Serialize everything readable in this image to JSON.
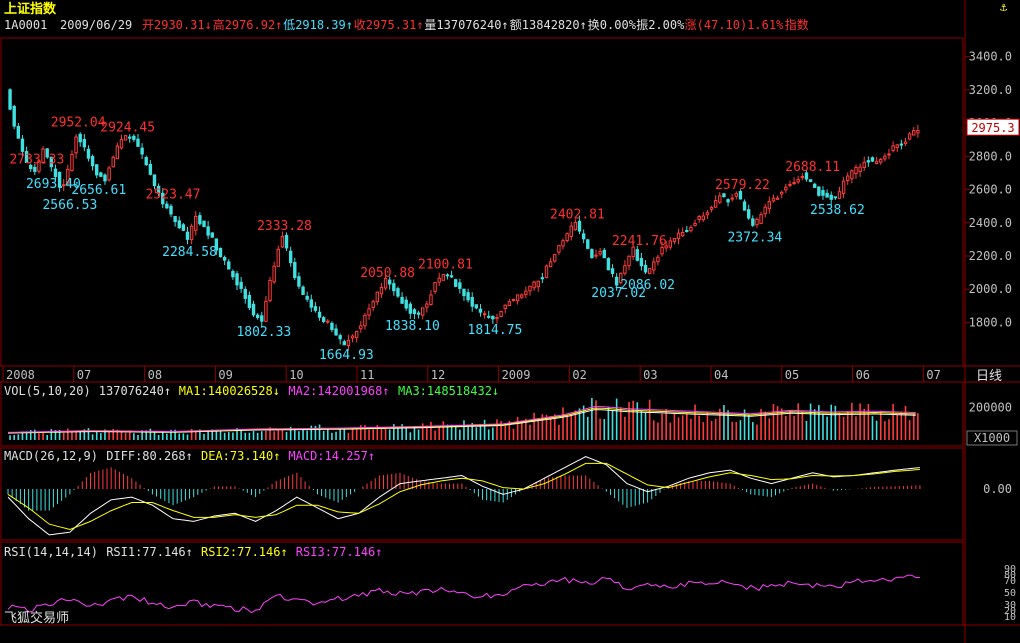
{
  "header": {
    "title": "上证指数",
    "code": "1A0001",
    "date": "2009/06/29",
    "fields": [
      {
        "text": "开2930.31↓",
        "color": "#ff3030"
      },
      {
        "text": "高2976.92↑",
        "color": "#ff3030"
      },
      {
        "text": "低2918.39↑",
        "color": "#40e0ff"
      },
      {
        "text": "收2975.31↑",
        "color": "#ff3030"
      },
      {
        "text": "量137076240↑",
        "color": "#e0e0e0"
      },
      {
        "text": "额13842820↑",
        "color": "#e0e0e0"
      },
      {
        "text": "换0.00%",
        "color": "#e0e0e0"
      },
      {
        "text": "振2.00%",
        "color": "#e0e0e0"
      },
      {
        "text": "涨(47.10)1.61%",
        "color": "#ff3030"
      },
      {
        "text": "指数",
        "color": "#ff3030"
      }
    ],
    "corner_icon": "anchor-icon"
  },
  "colors": {
    "up": "#ff3c3c",
    "down": "#40e0e0",
    "grid": "#8b0000",
    "axis_text": "#c0c0c0",
    "ma1": "#ffffff",
    "ma2": "#ffff00",
    "ma3": "#ff40ff",
    "diff": "#ffffff",
    "dea": "#ffff00",
    "rsi": "#ff40ff",
    "high_label": "#ff3030",
    "low_label": "#40e0ff"
  },
  "chart_data": {
    "type": "candlestick",
    "title": "上证指数",
    "period": "日线",
    "price_axis": {
      "ticks": [
        1800,
        2000,
        2200,
        2400,
        2600,
        2800,
        3000,
        3200,
        3400
      ],
      "range": [
        1550,
        3500
      ]
    },
    "last_price": "2975.3",
    "time_labels": [
      "2008",
      "07",
      "08",
      "09",
      "10",
      "11",
      "12",
      "2009",
      "02",
      "03",
      "04",
      "05",
      "06",
      "07"
    ],
    "price_path": [
      [
        0,
        3210
      ],
      [
        5,
        2930
      ],
      [
        10,
        2760
      ],
      [
        14,
        2700
      ],
      [
        18,
        2830
      ],
      [
        21,
        2760
      ],
      [
        24,
        2690
      ],
      [
        27,
        2580
      ],
      [
        30,
        2720
      ],
      [
        34,
        2930
      ],
      [
        37,
        2880
      ],
      [
        40,
        2790
      ],
      [
        44,
        2700
      ],
      [
        48,
        2660
      ],
      [
        52,
        2790
      ],
      [
        55,
        2900
      ],
      [
        60,
        2920
      ],
      [
        64,
        2860
      ],
      [
        68,
        2750
      ],
      [
        72,
        2620
      ],
      [
        76,
        2520
      ],
      [
        80,
        2450
      ],
      [
        84,
        2380
      ],
      [
        88,
        2300
      ],
      [
        92,
        2430
      ],
      [
        96,
        2380
      ],
      [
        100,
        2300
      ],
      [
        104,
        2200
      ],
      [
        108,
        2120
      ],
      [
        112,
        2040
      ],
      [
        116,
        1950
      ],
      [
        120,
        1850
      ],
      [
        124,
        1800
      ],
      [
        128,
        2050
      ],
      [
        131,
        2200
      ],
      [
        134,
        2330
      ],
      [
        137,
        2200
      ],
      [
        140,
        2080
      ],
      [
        144,
        1970
      ],
      [
        148,
        1900
      ],
      [
        152,
        1830
      ],
      [
        156,
        1800
      ],
      [
        160,
        1720
      ],
      [
        164,
        1670
      ],
      [
        168,
        1720
      ],
      [
        172,
        1790
      ],
      [
        176,
        1880
      ],
      [
        180,
        1980
      ],
      [
        184,
        2050
      ],
      [
        188,
        2000
      ],
      [
        192,
        1930
      ],
      [
        196,
        1870
      ],
      [
        200,
        1840
      ],
      [
        204,
        1920
      ],
      [
        208,
        2030
      ],
      [
        212,
        2100
      ],
      [
        216,
        2060
      ],
      [
        220,
        1990
      ],
      [
        224,
        1940
      ],
      [
        228,
        1880
      ],
      [
        232,
        1840
      ],
      [
        236,
        1815
      ],
      [
        240,
        1870
      ],
      [
        244,
        1920
      ],
      [
        248,
        1960
      ],
      [
        252,
        1990
      ],
      [
        256,
        2030
      ],
      [
        260,
        2080
      ],
      [
        264,
        2180
      ],
      [
        268,
        2260
      ],
      [
        272,
        2330
      ],
      [
        276,
        2400
      ],
      [
        279,
        2320
      ],
      [
        282,
        2240
      ],
      [
        285,
        2180
      ],
      [
        288,
        2240
      ],
      [
        292,
        2120
      ],
      [
        296,
        2040
      ],
      [
        300,
        2140
      ],
      [
        304,
        2240
      ],
      [
        307,
        2150
      ],
      [
        310,
        2090
      ],
      [
        314,
        2160
      ],
      [
        318,
        2240
      ],
      [
        322,
        2290
      ],
      [
        326,
        2330
      ],
      [
        330,
        2360
      ],
      [
        334,
        2410
      ],
      [
        338,
        2450
      ],
      [
        342,
        2500
      ],
      [
        346,
        2560
      ],
      [
        350,
        2540
      ],
      [
        354,
        2580
      ],
      [
        358,
        2480
      ],
      [
        362,
        2380
      ],
      [
        366,
        2440
      ],
      [
        370,
        2520
      ],
      [
        374,
        2560
      ],
      [
        378,
        2620
      ],
      [
        382,
        2650
      ],
      [
        386,
        2690
      ],
      [
        390,
        2640
      ],
      [
        394,
        2580
      ],
      [
        398,
        2560
      ],
      [
        402,
        2540
      ],
      [
        406,
        2640
      ],
      [
        410,
        2700
      ],
      [
        414,
        2740
      ],
      [
        418,
        2780
      ],
      [
        422,
        2760
      ],
      [
        426,
        2800
      ],
      [
        430,
        2850
      ],
      [
        434,
        2880
      ],
      [
        438,
        2920
      ],
      [
        443,
        2975
      ]
    ],
    "annotations_high": [
      {
        "text": "2952.04",
        "x": 34,
        "y": 2955
      },
      {
        "text": "2924.45",
        "x": 58,
        "y": 2925
      },
      {
        "text": "2733.33",
        "x": 14,
        "y": 2733
      },
      {
        "text": "2523.47",
        "x": 80,
        "y": 2523
      },
      {
        "text": "2333.28",
        "x": 134,
        "y": 2333
      },
      {
        "text": "2050.88",
        "x": 184,
        "y": 2050
      },
      {
        "text": "2100.81",
        "x": 212,
        "y": 2100
      },
      {
        "text": "2402.81",
        "x": 276,
        "y": 2402
      },
      {
        "text": "2241.76",
        "x": 306,
        "y": 2241
      },
      {
        "text": "2579.22",
        "x": 356,
        "y": 2579
      },
      {
        "text": "2688.11",
        "x": 390,
        "y": 2688
      }
    ],
    "annotations_low": [
      {
        "text": "2693.40",
        "x": 22,
        "y": 2693
      },
      {
        "text": "2566.53",
        "x": 30,
        "y": 2566
      },
      {
        "text": "2656.61",
        "x": 44,
        "y": 2656
      },
      {
        "text": "2284.58",
        "x": 88,
        "y": 2284
      },
      {
        "text": "1802.33",
        "x": 124,
        "y": 1802
      },
      {
        "text": "1664.93",
        "x": 164,
        "y": 1664
      },
      {
        "text": "1838.10",
        "x": 196,
        "y": 1838
      },
      {
        "text": "1814.75",
        "x": 236,
        "y": 1814
      },
      {
        "text": "2037.02",
        "x": 296,
        "y": 2037
      },
      {
        "text": "2086.02",
        "x": 310,
        "y": 2086
      },
      {
        "text": "2372.34",
        "x": 362,
        "y": 2372
      },
      {
        "text": "2538.62",
        "x": 402,
        "y": 2538
      }
    ],
    "volume": {
      "label": "VOL(5,10,20)",
      "value": "137076240↑",
      "ma1": "MA1:140026528↓",
      "ma2": "MA2:142001968↑",
      "ma3": "MA3:148518432↓",
      "tick": "200000",
      "unit": "X1000",
      "level_path": [
        [
          0,
          45
        ],
        [
          40,
          55
        ],
        [
          80,
          50
        ],
        [
          120,
          65
        ],
        [
          160,
          70
        ],
        [
          200,
          80
        ],
        [
          240,
          95
        ],
        [
          270,
          150
        ],
        [
          285,
          200
        ],
        [
          300,
          185
        ],
        [
          330,
          170
        ],
        [
          360,
          155
        ],
        [
          380,
          175
        ],
        [
          400,
          165
        ],
        [
          420,
          170
        ],
        [
          443,
          160
        ]
      ]
    },
    "macd": {
      "label": "MACD(26,12,9)",
      "diff": "DIFF:80.268↑",
      "dea": "DEA:73.140↑",
      "macd": "MACD:14.257↑",
      "tick": "0.00",
      "diff_path": [
        [
          0,
          -30
        ],
        [
          10,
          -110
        ],
        [
          20,
          -170
        ],
        [
          30,
          -160
        ],
        [
          40,
          -90
        ],
        [
          50,
          -40
        ],
        [
          60,
          -30
        ],
        [
          70,
          -60
        ],
        [
          80,
          -110
        ],
        [
          90,
          -120
        ],
        [
          100,
          -100
        ],
        [
          110,
          -90
        ],
        [
          120,
          -120
        ],
        [
          130,
          -80
        ],
        [
          140,
          -30
        ],
        [
          150,
          -70
        ],
        [
          160,
          -110
        ],
        [
          170,
          -90
        ],
        [
          180,
          -30
        ],
        [
          190,
          20
        ],
        [
          200,
          30
        ],
        [
          210,
          40
        ],
        [
          220,
          50
        ],
        [
          230,
          10
        ],
        [
          240,
          -20
        ],
        [
          250,
          0
        ],
        [
          260,
          40
        ],
        [
          270,
          80
        ],
        [
          280,
          120
        ],
        [
          290,
          90
        ],
        [
          300,
          20
        ],
        [
          310,
          -10
        ],
        [
          320,
          10
        ],
        [
          330,
          40
        ],
        [
          340,
          60
        ],
        [
          350,
          70
        ],
        [
          360,
          40
        ],
        [
          370,
          20
        ],
        [
          380,
          40
        ],
        [
          390,
          60
        ],
        [
          400,
          45
        ],
        [
          410,
          50
        ],
        [
          420,
          60
        ],
        [
          430,
          70
        ],
        [
          443,
          80
        ]
      ],
      "dea_path": [
        [
          0,
          -20
        ],
        [
          10,
          -70
        ],
        [
          20,
          -130
        ],
        [
          30,
          -150
        ],
        [
          40,
          -120
        ],
        [
          50,
          -80
        ],
        [
          60,
          -50
        ],
        [
          70,
          -50
        ],
        [
          80,
          -80
        ],
        [
          90,
          -105
        ],
        [
          100,
          -105
        ],
        [
          110,
          -95
        ],
        [
          120,
          -105
        ],
        [
          130,
          -95
        ],
        [
          140,
          -60
        ],
        [
          150,
          -60
        ],
        [
          160,
          -85
        ],
        [
          170,
          -90
        ],
        [
          180,
          -55
        ],
        [
          190,
          -10
        ],
        [
          200,
          15
        ],
        [
          210,
          30
        ],
        [
          220,
          40
        ],
        [
          230,
          30
        ],
        [
          240,
          5
        ],
        [
          250,
          0
        ],
        [
          260,
          20
        ],
        [
          270,
          55
        ],
        [
          280,
          95
        ],
        [
          290,
          95
        ],
        [
          300,
          55
        ],
        [
          310,
          15
        ],
        [
          320,
          5
        ],
        [
          330,
          25
        ],
        [
          340,
          45
        ],
        [
          350,
          60
        ],
        [
          360,
          50
        ],
        [
          370,
          35
        ],
        [
          380,
          38
        ],
        [
          390,
          50
        ],
        [
          400,
          48
        ],
        [
          410,
          50
        ],
        [
          420,
          56
        ],
        [
          430,
          65
        ],
        [
          443,
          73
        ]
      ]
    },
    "rsi": {
      "label": "RSI(14,14,14)",
      "rsi1": "RSI1:77.146↑",
      "rsi2": "RSI2:77.146↑",
      "rsi3": "RSI3:77.146↑",
      "ticks": [
        10,
        20,
        30,
        50,
        70,
        80,
        90
      ],
      "path": [
        [
          0,
          25
        ],
        [
          10,
          20
        ],
        [
          20,
          30
        ],
        [
          30,
          40
        ],
        [
          40,
          28
        ],
        [
          50,
          35
        ],
        [
          60,
          45
        ],
        [
          70,
          30
        ],
        [
          80,
          25
        ],
        [
          90,
          32
        ],
        [
          100,
          28
        ],
        [
          110,
          22
        ],
        [
          120,
          18
        ],
        [
          130,
          45
        ],
        [
          140,
          35
        ],
        [
          150,
          30
        ],
        [
          160,
          38
        ],
        [
          170,
          45
        ],
        [
          180,
          52
        ],
        [
          190,
          48
        ],
        [
          200,
          50
        ],
        [
          210,
          55
        ],
        [
          220,
          45
        ],
        [
          230,
          42
        ],
        [
          240,
          48
        ],
        [
          250,
          58
        ],
        [
          260,
          62
        ],
        [
          270,
          70
        ],
        [
          280,
          65
        ],
        [
          290,
          72
        ],
        [
          300,
          55
        ],
        [
          310,
          60
        ],
        [
          320,
          58
        ],
        [
          330,
          65
        ],
        [
          340,
          62
        ],
        [
          350,
          68
        ],
        [
          360,
          56
        ],
        [
          370,
          60
        ],
        [
          380,
          65
        ],
        [
          390,
          62
        ],
        [
          400,
          60
        ],
        [
          410,
          66
        ],
        [
          420,
          70
        ],
        [
          430,
          72
        ],
        [
          443,
          77
        ]
      ]
    }
  },
  "footer": {
    "brand": "飞狐交易师"
  }
}
